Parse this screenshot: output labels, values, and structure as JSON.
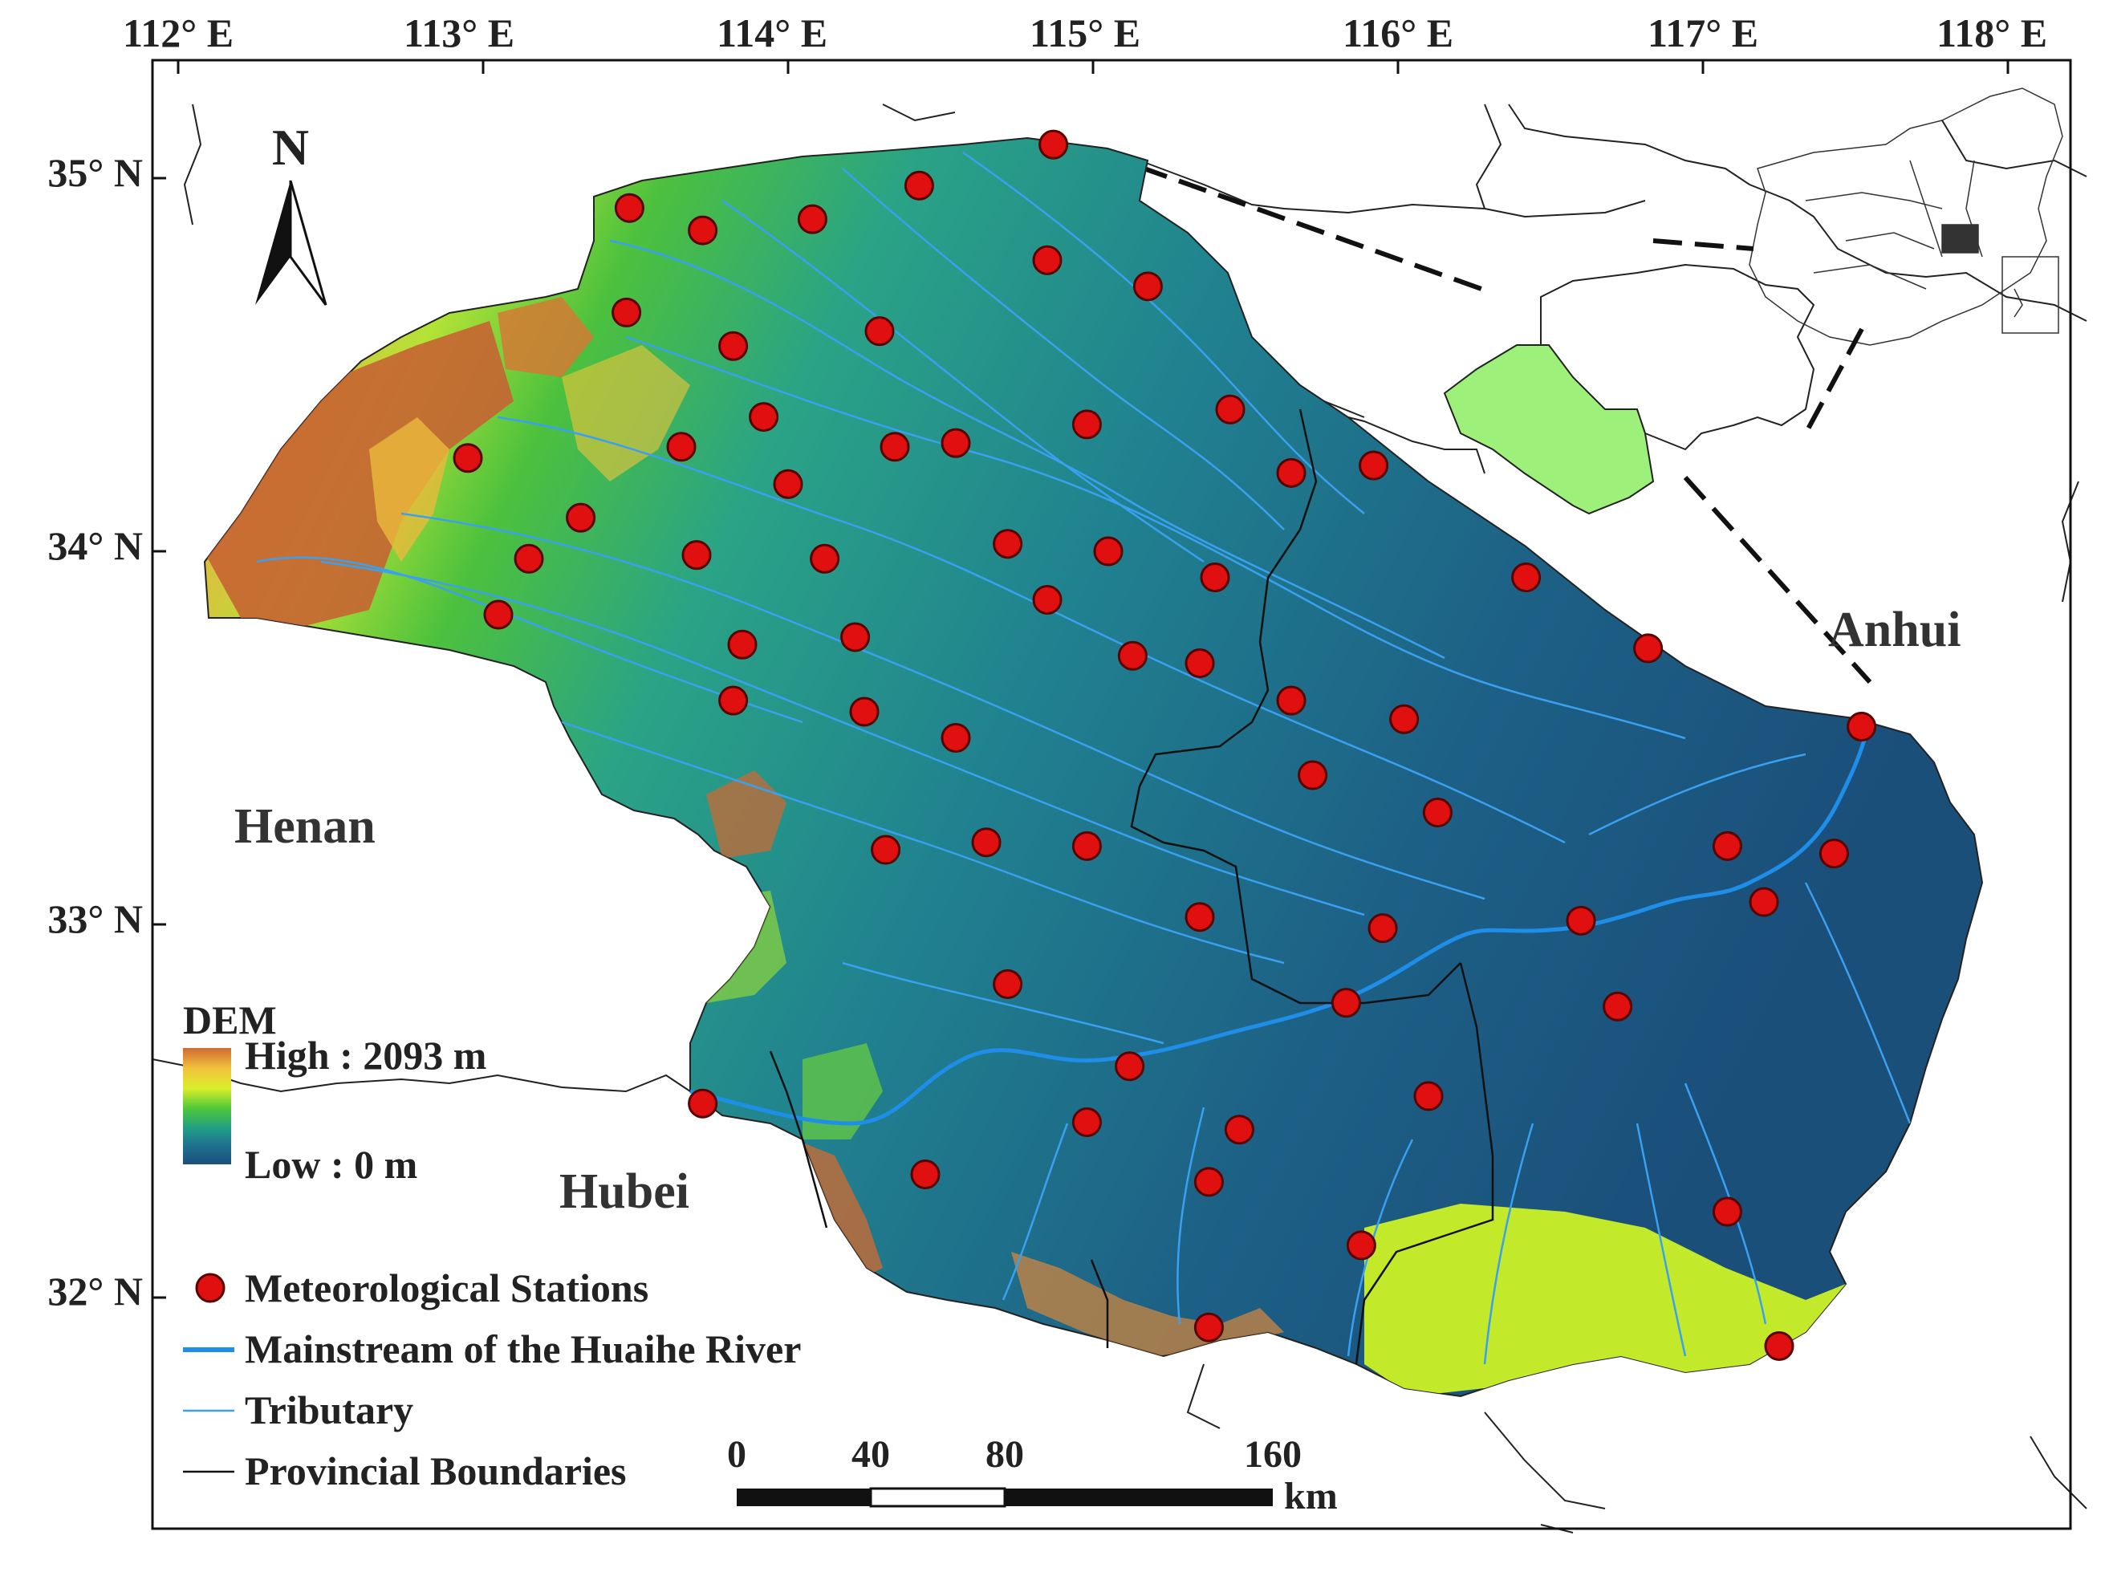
{
  "map": {
    "north_label": "N",
    "lon_labels": [
      "112° E",
      "113° E",
      "114° E",
      "115° E",
      "116° E",
      "117° E",
      "118° E"
    ],
    "lat_labels": [
      "35° N",
      "34° N",
      "33° N",
      "32° N"
    ],
    "province_labels": [
      "Henan",
      "Hubei",
      "Anhui"
    ],
    "dem_legend": {
      "title": "DEM",
      "high": "High : 2093 m",
      "low": "Low : 0 m",
      "colors": [
        "#d06a35",
        "#f2c43a",
        "#d8ee2a",
        "#4ec83a",
        "#1f9b86",
        "#1e6f8f",
        "#1b4f7a"
      ]
    },
    "legend_items": [
      {
        "name": "Meteorological Stations",
        "symbol": "red-dot",
        "color": "#e01010"
      },
      {
        "name": "Mainstream of the Huaihe River",
        "symbol": "thick-blue-line",
        "color": "#1e8ee8"
      },
      {
        "name": "Tributary",
        "symbol": "thin-blue-line",
        "color": "#3aa0f0"
      },
      {
        "name": "Provincial Boundaries",
        "symbol": "black-line",
        "color": "#111111"
      }
    ],
    "scale_bar": {
      "ticks": [
        "0",
        "40",
        "80",
        "160"
      ],
      "unit": "km"
    },
    "stations": [
      [
        114.87,
        35.09
      ],
      [
        114.43,
        34.98
      ],
      [
        113.48,
        34.92
      ],
      [
        113.72,
        34.86
      ],
      [
        114.08,
        34.89
      ],
      [
        114.85,
        34.78
      ],
      [
        115.18,
        34.71
      ],
      [
        113.47,
        34.64
      ],
      [
        113.82,
        34.55
      ],
      [
        114.3,
        34.59
      ],
      [
        115.45,
        34.38
      ],
      [
        113.92,
        34.36
      ],
      [
        114.98,
        34.34
      ],
      [
        112.95,
        34.25
      ],
      [
        113.65,
        34.28
      ],
      [
        114.35,
        34.28
      ],
      [
        114.55,
        34.29
      ],
      [
        115.92,
        34.23
      ],
      [
        115.65,
        34.21
      ],
      [
        114.0,
        34.18
      ],
      [
        113.32,
        34.09
      ],
      [
        113.15,
        33.98
      ],
      [
        113.7,
        33.99
      ],
      [
        114.12,
        33.98
      ],
      [
        114.72,
        34.02
      ],
      [
        115.05,
        34.0
      ],
      [
        115.4,
        33.93
      ],
      [
        116.42,
        33.93
      ],
      [
        114.85,
        33.87
      ],
      [
        113.85,
        33.75
      ],
      [
        114.22,
        33.77
      ],
      [
        115.13,
        33.72
      ],
      [
        115.35,
        33.7
      ],
      [
        116.82,
        33.74
      ],
      [
        113.05,
        33.83
      ],
      [
        113.82,
        33.6
      ],
      [
        114.25,
        33.57
      ],
      [
        114.55,
        33.5
      ],
      [
        115.65,
        33.6
      ],
      [
        116.02,
        33.55
      ],
      [
        117.52,
        33.53
      ],
      [
        115.72,
        33.4
      ],
      [
        116.13,
        33.3
      ],
      [
        114.32,
        33.2
      ],
      [
        114.65,
        33.22
      ],
      [
        114.98,
        33.21
      ],
      [
        117.08,
        33.21
      ],
      [
        117.43,
        33.19
      ],
      [
        117.2,
        33.06
      ],
      [
        115.35,
        33.02
      ],
      [
        115.95,
        32.99
      ],
      [
        116.6,
        33.01
      ],
      [
        114.72,
        32.84
      ],
      [
        115.83,
        32.79
      ],
      [
        116.72,
        32.78
      ],
      [
        115.12,
        32.62
      ],
      [
        116.1,
        32.54
      ],
      [
        113.72,
        32.52
      ],
      [
        114.98,
        32.47
      ],
      [
        115.48,
        32.45
      ],
      [
        114.45,
        32.33
      ],
      [
        115.38,
        32.31
      ],
      [
        117.08,
        32.23
      ],
      [
        115.88,
        32.14
      ],
      [
        115.38,
        31.92
      ],
      [
        117.25,
        31.87
      ]
    ]
  }
}
